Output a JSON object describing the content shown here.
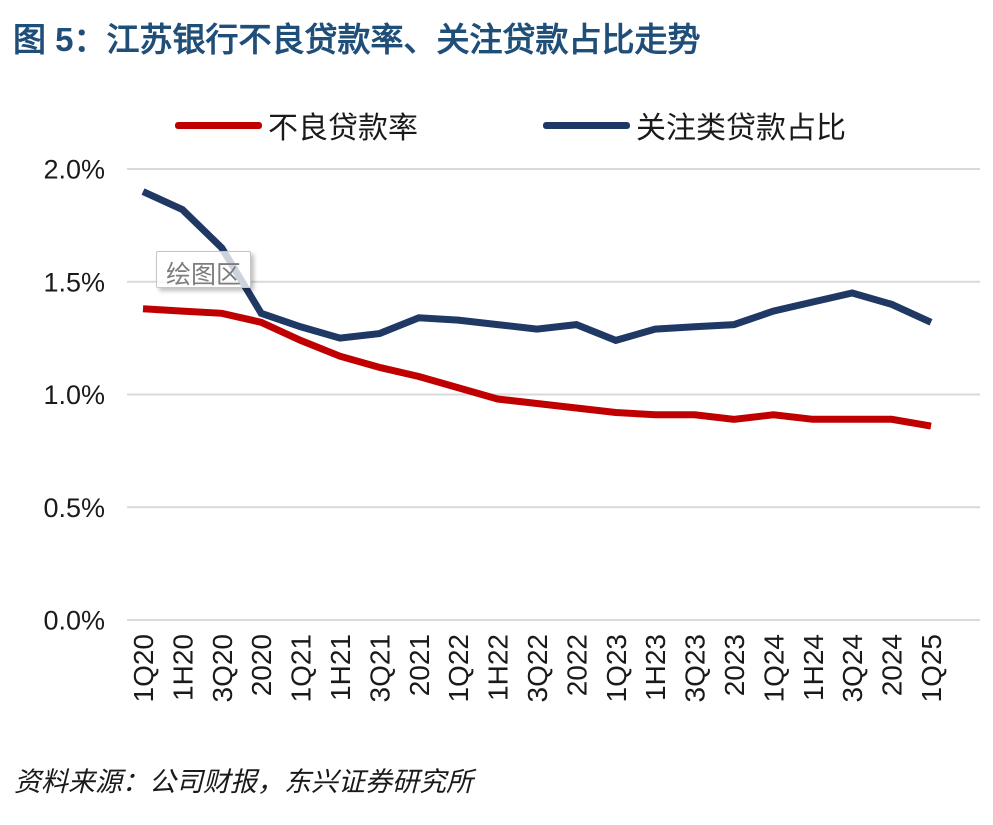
{
  "figure": {
    "title": "图 5：江苏银行不良贷款率、关注贷款占比走势",
    "source": "资料来源：公司财报，东兴证券研究所",
    "plot_area_label": "绘图区"
  },
  "legend": {
    "items": [
      {
        "label": "不良贷款率",
        "color": "#C00000"
      },
      {
        "label": "关注类贷款占比",
        "color": "#1F3864"
      }
    ]
  },
  "colors": {
    "title_text": "#1F4E79",
    "npl_line": "#C00000",
    "special_mention_line": "#1F3864",
    "gridline": "#D9D9D9",
    "axis_text": "#1a1a1a",
    "tooltip_text": "#7d7d7d"
  },
  "chart_data": {
    "type": "line",
    "title": "江苏银行不良贷款率、关注贷款占比走势",
    "unit": "%",
    "categories": [
      "1Q20",
      "1H20",
      "3Q20",
      "2020",
      "1Q21",
      "1H21",
      "3Q21",
      "2021",
      "1Q22",
      "1H22",
      "3Q22",
      "2022",
      "1Q23",
      "1H23",
      "3Q23",
      "2023",
      "1Q24",
      "1H24",
      "3Q24",
      "2024",
      "1Q25"
    ],
    "series": [
      {
        "name": "不良贷款率",
        "color": "#C00000",
        "values": [
          1.38,
          1.37,
          1.36,
          1.32,
          1.24,
          1.17,
          1.12,
          1.08,
          1.03,
          0.98,
          0.96,
          0.94,
          0.92,
          0.91,
          0.91,
          0.89,
          0.91,
          0.89,
          0.89,
          0.89,
          0.86
        ]
      },
      {
        "name": "关注类贷款占比",
        "color": "#1F3864",
        "values": [
          1.9,
          1.82,
          1.65,
          1.36,
          1.3,
          1.25,
          1.27,
          1.34,
          1.33,
          1.31,
          1.29,
          1.31,
          1.24,
          1.29,
          1.3,
          1.31,
          1.37,
          1.41,
          1.45,
          1.4,
          1.32
        ]
      }
    ],
    "y_ticks": [
      {
        "value": 0.0,
        "label": "0.0%"
      },
      {
        "value": 0.5,
        "label": "0.5%"
      },
      {
        "value": 1.0,
        "label": "1.0%"
      },
      {
        "value": 1.5,
        "label": "1.5%"
      },
      {
        "value": 2.0,
        "label": "2.0%"
      }
    ],
    "ylim": [
      0.0,
      2.0
    ],
    "xlabel": "",
    "ylabel": "",
    "grid": "horizontal",
    "legend_position": "top-center",
    "x_label_rotation": 90
  }
}
